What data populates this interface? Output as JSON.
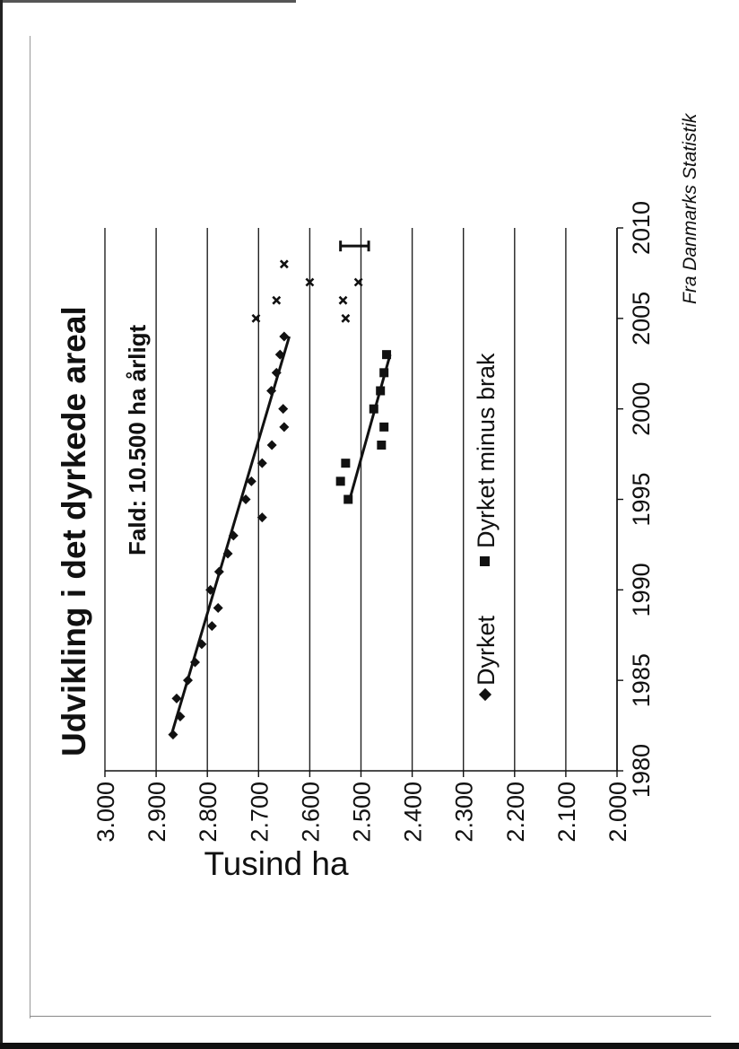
{
  "chart_data": {
    "type": "scatter",
    "title": "Udvikling i det dyrkede areal",
    "annotation": "Fald: 10.500 ha årligt",
    "ylabel": "Tusind ha",
    "xlabel": "",
    "source": "Fra Danmarks Statistik",
    "xlim": [
      1980,
      2010
    ],
    "ylim": [
      2000,
      3000
    ],
    "x_ticks": [
      "1980",
      "1985",
      "1990",
      "1995",
      "2000",
      "2005",
      "2010"
    ],
    "y_ticks": [
      "3.000",
      "2.900",
      "2.800",
      "2.700",
      "2.600",
      "2.500",
      "2.400",
      "2.300",
      "2.200",
      "2.100",
      "2.000"
    ],
    "grid": "horizontal",
    "legend_position": "bottom",
    "series": [
      {
        "name": "Dyrket",
        "marker": "diamond",
        "x": [
          1982,
          1983,
          1984,
          1985,
          1986,
          1987,
          1988,
          1989,
          1990,
          1991,
          1992,
          1993,
          1994,
          1995,
          1996,
          1997,
          1998,
          1999,
          2000,
          2001,
          2002,
          2003,
          2004
        ],
        "y": [
          2867,
          2853,
          2860,
          2838,
          2824,
          2811,
          2791,
          2779,
          2794,
          2777,
          2760,
          2749,
          2693,
          2725,
          2714,
          2693,
          2674,
          2650,
          2652,
          2675,
          2665,
          2658,
          2650
        ]
      },
      {
        "name": "Dyrket minus brak",
        "marker": "square",
        "x": [
          1995,
          1996,
          1997,
          1998,
          1999,
          2000,
          2001,
          2002,
          2003
        ],
        "y": [
          2525,
          2540,
          2530,
          2460,
          2455,
          2475,
          2462,
          2455,
          2450
        ]
      },
      {
        "marker": "cross",
        "x": [
          2005,
          2005,
          2006,
          2006,
          2007,
          2007,
          2008
        ],
        "y": [
          2705,
          2530,
          2665,
          2535,
          2505,
          2600,
          2650
        ]
      }
    ],
    "trendlines": [
      {
        "series": "Dyrket",
        "x": [
          1982,
          2004
        ],
        "y": [
          2870,
          2640
        ]
      },
      {
        "series": "Dyrket minus brak",
        "x": [
          1995,
          2003
        ],
        "y": [
          2522,
          2443
        ]
      }
    ],
    "error_bar": {
      "x": 2009,
      "y": [
        2485,
        2540
      ]
    },
    "legend": [
      {
        "label": "Dyrket",
        "marker": "diamond"
      },
      {
        "label": "Dyrket minus brak",
        "marker": "square"
      }
    ],
    "colors": {
      "marks": "#111111",
      "gridline": "#222222",
      "background": "#ffffff"
    }
  }
}
